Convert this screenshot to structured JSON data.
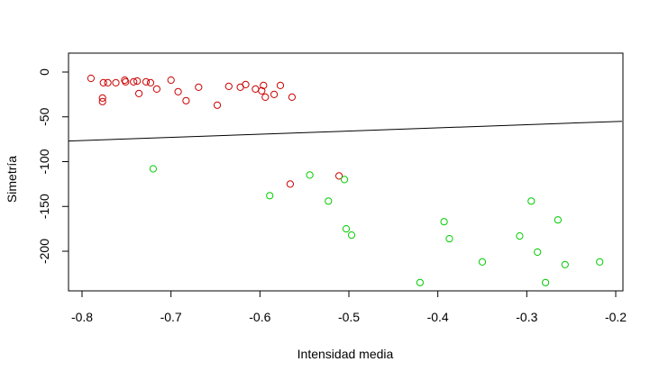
{
  "chart_data": {
    "type": "scatter",
    "title": "",
    "xlabel": "Intensidad media",
    "ylabel": "Simetría",
    "xlim": [
      -0.8,
      -0.2
    ],
    "ylim": [
      -240,
      0
    ],
    "x_ticks": [
      -0.8,
      -0.7,
      -0.6,
      -0.5,
      -0.4,
      -0.3,
      -0.2
    ],
    "x_tick_labels": [
      "-0.8",
      "-0.7",
      "-0.6",
      "-0.5",
      "-0.4",
      "-0.3",
      "-0.2"
    ],
    "y_ticks": [
      0,
      -50,
      -100,
      -150,
      -200
    ],
    "y_tick_labels": [
      "0",
      "-50",
      "-100",
      "-150",
      "-200"
    ],
    "grid": false,
    "marker": "open-circle",
    "series": [
      {
        "color": "#cc0000",
        "points": [
          [
            -0.79,
            -7
          ],
          [
            -0.777,
            -29
          ],
          [
            -0.777,
            -33
          ],
          [
            -0.776,
            -12
          ],
          [
            -0.771,
            -12
          ],
          [
            -0.762,
            -12
          ],
          [
            -0.752,
            -9
          ],
          [
            -0.751,
            -11
          ],
          [
            -0.742,
            -11
          ],
          [
            -0.738,
            -10
          ],
          [
            -0.736,
            -24
          ],
          [
            -0.728,
            -11
          ],
          [
            -0.723,
            -12
          ],
          [
            -0.716,
            -19
          ],
          [
            -0.7,
            -9
          ],
          [
            -0.692,
            -22
          ],
          [
            -0.683,
            -32
          ],
          [
            -0.669,
            -17
          ],
          [
            -0.648,
            -37
          ],
          [
            -0.635,
            -16
          ],
          [
            -0.622,
            -17
          ],
          [
            -0.616,
            -14
          ],
          [
            -0.605,
            -19
          ],
          [
            -0.598,
            -21
          ],
          [
            -0.596,
            -15
          ],
          [
            -0.594,
            -28
          ],
          [
            -0.584,
            -25
          ],
          [
            -0.577,
            -15
          ],
          [
            -0.564,
            -28
          ],
          [
            -0.566,
            -125
          ],
          [
            -0.511,
            -116
          ]
        ]
      },
      {
        "color": "#00cc00",
        "points": [
          [
            -0.72,
            -108
          ],
          [
            -0.589,
            -138
          ],
          [
            -0.544,
            -115
          ],
          [
            -0.523,
            -144
          ],
          [
            -0.505,
            -120
          ],
          [
            -0.503,
            -175
          ],
          [
            -0.497,
            -182
          ],
          [
            -0.42,
            -235
          ],
          [
            -0.393,
            -167
          ],
          [
            -0.387,
            -186
          ],
          [
            -0.35,
            -212
          ],
          [
            -0.308,
            -183
          ],
          [
            -0.295,
            -144
          ],
          [
            -0.288,
            -201
          ],
          [
            -0.279,
            -235
          ],
          [
            -0.265,
            -165
          ],
          [
            -0.257,
            -215
          ],
          [
            -0.218,
            -212
          ]
        ]
      }
    ],
    "lines": [
      {
        "color": "#000000",
        "x": [
          -0.815,
          -0.193
        ],
        "y": [
          -77,
          -55
        ]
      }
    ]
  }
}
